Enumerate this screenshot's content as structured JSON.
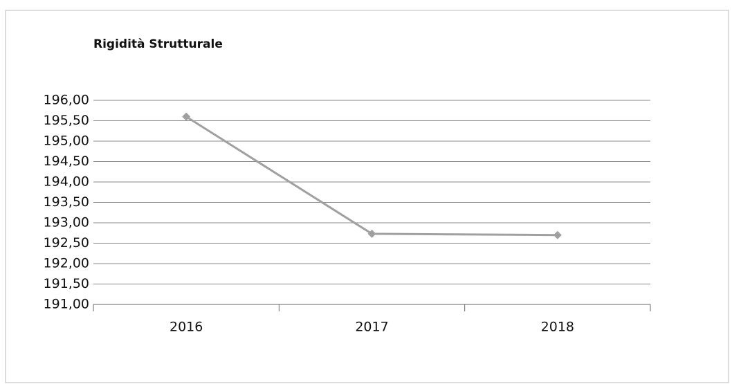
{
  "chart_data": {
    "type": "line",
    "title": "Rigidità Strutturale",
    "categories": [
      "2016",
      "2017",
      "2018"
    ],
    "values": [
      195.6,
      192.73,
      192.7
    ],
    "color": "#a0a0a0",
    "ylim": [
      191,
      196
    ],
    "yticks": [
      {
        "value": 191,
        "label": "191,00"
      },
      {
        "value": 191.5,
        "label": "191,50"
      },
      {
        "value": 192,
        "label": "192,00"
      },
      {
        "value": 192.5,
        "label": "192,50"
      },
      {
        "value": 193,
        "label": "193,00"
      },
      {
        "value": 193.5,
        "label": "193,50"
      },
      {
        "value": 194,
        "label": "194,00"
      },
      {
        "value": 194.5,
        "label": "194,50"
      },
      {
        "value": 195,
        "label": "195,00"
      },
      {
        "value": 195.5,
        "label": "195,50"
      },
      {
        "value": 196,
        "label": "196,00"
      }
    ],
    "grid": true
  }
}
